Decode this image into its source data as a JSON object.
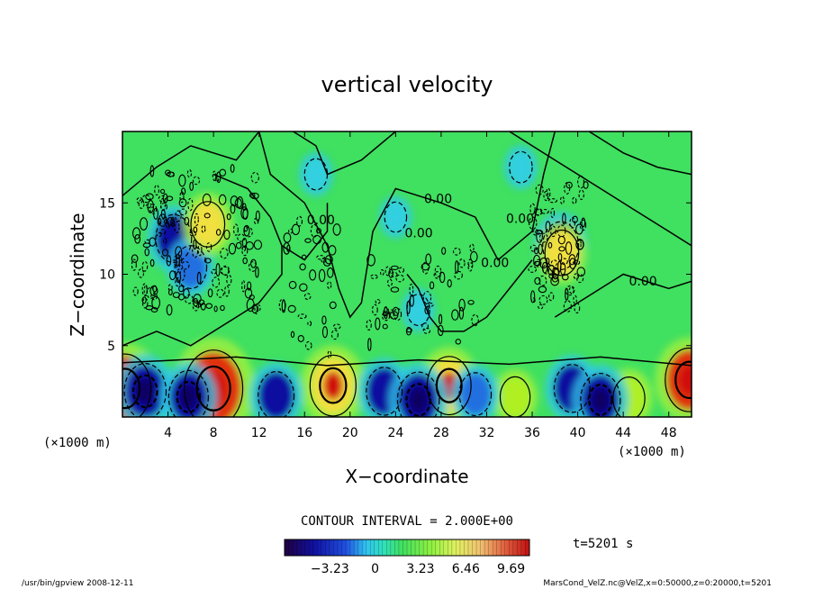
{
  "chart_data": {
    "type": "heatmap",
    "title": "vertical velocity",
    "xlabel": "X−coordinate",
    "ylabel": "Z−coordinate",
    "x_unit_left": "(×1000 m)",
    "x_unit_right": "(×1000 m)",
    "xlim": [
      0,
      50
    ],
    "ylim": [
      0,
      20
    ],
    "x_ticks": [
      "4",
      "8",
      "12",
      "16",
      "20",
      "24",
      "28",
      "32",
      "36",
      "40",
      "44",
      "48"
    ],
    "y_ticks": [
      "5",
      "10",
      "15"
    ],
    "contour_labels": [
      "0.00",
      "0.00",
      "0.00",
      "0.00",
      "0.00",
      "0.00"
    ],
    "contour_interval": "CONTOUR INTERVAL = 2.000E+00",
    "colorbar_ticks": [
      "−3.23",
      "0",
      "3.23",
      "6.46",
      "9.69"
    ],
    "colorbar_range": [
      -6.46,
      11.0
    ],
    "time_label": "t=5201 s",
    "footer_left": "/usr/bin/gpview   2008-12-11",
    "footer_right": "MarsCond_VelZ.nc@VelZ,x=0:50000,z=0:20000,t=5201",
    "colors": {
      "background": "#40e060",
      "strong_negative": "#1010a0",
      "weak_negative": "#30d0e0",
      "weak_positive": "#b0f020",
      "strong_positive": "#e03010"
    },
    "features": [
      {
        "x": 0.2,
        "z": 2.0,
        "value": 8.0
      },
      {
        "x": 8.0,
        "z": 2.0,
        "value": 9.5
      },
      {
        "x": 18.5,
        "z": 2.2,
        "value": 6.5
      },
      {
        "x": 28.7,
        "z": 2.2,
        "value": 6.0
      },
      {
        "x": 34.5,
        "z": 1.4,
        "value": 3.0
      },
      {
        "x": 49.8,
        "z": 2.6,
        "value": 7.0
      },
      {
        "x": 44.5,
        "z": 1.3,
        "value": 3.5
      },
      {
        "x": 2.0,
        "z": 1.8,
        "value": -5.5
      },
      {
        "x": 5.8,
        "z": 1.4,
        "value": -5.0
      },
      {
        "x": 13.5,
        "z": 1.5,
        "value": -4.5
      },
      {
        "x": 23.0,
        "z": 1.8,
        "value": -4.5
      },
      {
        "x": 26.0,
        "z": 1.2,
        "value": -5.5
      },
      {
        "x": 31.0,
        "z": 1.6,
        "value": -3.5
      },
      {
        "x": 39.5,
        "z": 2.0,
        "value": -4.5
      },
      {
        "x": 42.0,
        "z": 1.2,
        "value": -5.0
      },
      {
        "x": 4.5,
        "z": 12.5,
        "value": -4.5
      },
      {
        "x": 6.0,
        "z": 10.5,
        "value": -3.5
      },
      {
        "x": 38.5,
        "z": 12.0,
        "value": -4.5
      },
      {
        "x": 7.5,
        "z": 13.5,
        "value": 4.0
      },
      {
        "x": 38.6,
        "z": 11.5,
        "value": 4.0
      },
      {
        "x": 17.0,
        "z": 17.0,
        "value": -1.2
      },
      {
        "x": 24.0,
        "z": 14.0,
        "value": -1.0
      },
      {
        "x": 26.0,
        "z": 7.5,
        "value": -1.2
      },
      {
        "x": 35.0,
        "z": 17.5,
        "value": -1.2
      }
    ]
  }
}
